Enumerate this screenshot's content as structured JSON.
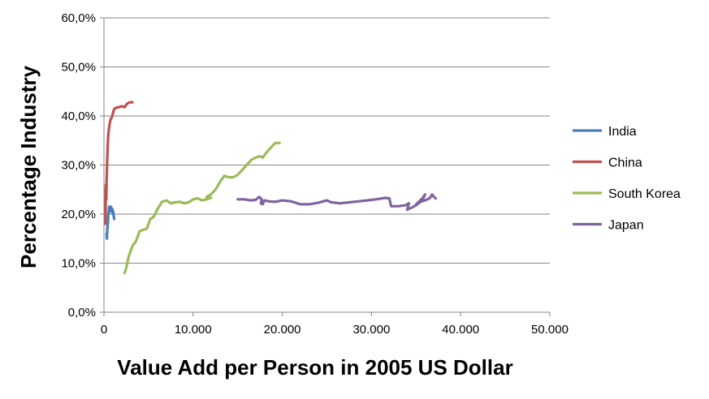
{
  "chart_data": {
    "type": "line",
    "xlabel": "Value Add per Person in 2005 US Dollar",
    "ylabel": "Percentage Industry",
    "xlim": [
      0,
      50000
    ],
    "ylim": [
      0,
      0.6
    ],
    "x_ticks": [
      0,
      10000,
      20000,
      30000,
      40000,
      50000
    ],
    "x_tick_labels": [
      "0",
      "10.000",
      "20.000",
      "30.000",
      "40.000",
      "50.000"
    ],
    "y_ticks": [
      0,
      0.1,
      0.2,
      0.3,
      0.4,
      0.5,
      0.6
    ],
    "y_tick_labels": [
      "0,0%",
      "10,0%",
      "20,0%",
      "30,0%",
      "40,0%",
      "50,0%",
      "60,0%"
    ],
    "grid": "horizontal",
    "legend_position": "right",
    "series": [
      {
        "name": "India",
        "color": "#4a7ebb",
        "points": [
          [
            300,
            0.16
          ],
          [
            330,
            0.15
          ],
          [
            360,
            0.165
          ],
          [
            380,
            0.175
          ],
          [
            400,
            0.17
          ],
          [
            430,
            0.18
          ],
          [
            460,
            0.19
          ],
          [
            500,
            0.2
          ],
          [
            540,
            0.205
          ],
          [
            580,
            0.215
          ],
          [
            620,
            0.21
          ],
          [
            660,
            0.205
          ],
          [
            700,
            0.212
          ],
          [
            750,
            0.208
          ],
          [
            800,
            0.215
          ],
          [
            850,
            0.21
          ],
          [
            900,
            0.205
          ],
          [
            950,
            0.21
          ],
          [
            1000,
            0.2
          ],
          [
            1050,
            0.205
          ],
          [
            1100,
            0.195
          ],
          [
            1150,
            0.19
          ]
        ]
      },
      {
        "name": "China",
        "color": "#c0504d",
        "points": [
          [
            150,
            0.18
          ],
          [
            180,
            0.2
          ],
          [
            200,
            0.25
          ],
          [
            230,
            0.26
          ],
          [
            260,
            0.23
          ],
          [
            290,
            0.265
          ],
          [
            320,
            0.28
          ],
          [
            360,
            0.31
          ],
          [
            400,
            0.33
          ],
          [
            450,
            0.35
          ],
          [
            500,
            0.365
          ],
          [
            600,
            0.38
          ],
          [
            700,
            0.39
          ],
          [
            800,
            0.395
          ],
          [
            900,
            0.398
          ],
          [
            1000,
            0.405
          ],
          [
            1100,
            0.412
          ],
          [
            1200,
            0.415
          ],
          [
            1400,
            0.417
          ],
          [
            1700,
            0.418
          ],
          [
            2000,
            0.42
          ],
          [
            2300,
            0.418
          ],
          [
            2600,
            0.425
          ],
          [
            2900,
            0.428
          ],
          [
            3200,
            0.428
          ]
        ]
      },
      {
        "name": "South Korea",
        "color": "#9bbb59",
        "points": [
          [
            2300,
            0.08
          ],
          [
            2500,
            0.09
          ],
          [
            2800,
            0.115
          ],
          [
            3200,
            0.135
          ],
          [
            3600,
            0.145
          ],
          [
            4000,
            0.165
          ],
          [
            4400,
            0.168
          ],
          [
            4800,
            0.17
          ],
          [
            5200,
            0.19
          ],
          [
            5600,
            0.195
          ],
          [
            6000,
            0.21
          ],
          [
            6500,
            0.225
          ],
          [
            7000,
            0.228
          ],
          [
            7500,
            0.222
          ],
          [
            8000,
            0.224
          ],
          [
            8500,
            0.225
          ],
          [
            9000,
            0.222
          ],
          [
            9500,
            0.224
          ],
          [
            10000,
            0.23
          ],
          [
            10500,
            0.232
          ],
          [
            11000,
            0.228
          ],
          [
            11500,
            0.23
          ],
          [
            12000,
            0.233
          ],
          [
            11800,
            0.232
          ],
          [
            11500,
            0.235
          ],
          [
            12000,
            0.24
          ],
          [
            12500,
            0.25
          ],
          [
            13000,
            0.265
          ],
          [
            13500,
            0.278
          ],
          [
            14000,
            0.275
          ],
          [
            14500,
            0.275
          ],
          [
            15000,
            0.28
          ],
          [
            15500,
            0.29
          ],
          [
            16000,
            0.3
          ],
          [
            16500,
            0.31
          ],
          [
            17000,
            0.315
          ],
          [
            17500,
            0.318
          ],
          [
            17800,
            0.315
          ],
          [
            18200,
            0.325
          ],
          [
            18700,
            0.335
          ],
          [
            19200,
            0.345
          ],
          [
            19700,
            0.345
          ]
        ]
      },
      {
        "name": "Japan",
        "color": "#8064a2",
        "points": [
          [
            15000,
            0.23
          ],
          [
            15800,
            0.23
          ],
          [
            16400,
            0.228
          ],
          [
            17000,
            0.229
          ],
          [
            17400,
            0.235
          ],
          [
            17700,
            0.23
          ],
          [
            17600,
            0.222
          ],
          [
            17800,
            0.22
          ],
          [
            18000,
            0.228
          ],
          [
            18500,
            0.226
          ],
          [
            19200,
            0.225
          ],
          [
            20000,
            0.228
          ],
          [
            21000,
            0.226
          ],
          [
            22000,
            0.22
          ],
          [
            23000,
            0.22
          ],
          [
            24000,
            0.223
          ],
          [
            25000,
            0.228
          ],
          [
            25500,
            0.224
          ],
          [
            26500,
            0.222
          ],
          [
            27500,
            0.224
          ],
          [
            28500,
            0.226
          ],
          [
            29500,
            0.228
          ],
          [
            30500,
            0.23
          ],
          [
            31500,
            0.233
          ],
          [
            32000,
            0.232
          ],
          [
            32200,
            0.216
          ],
          [
            33000,
            0.216
          ],
          [
            33800,
            0.218
          ],
          [
            34200,
            0.222
          ],
          [
            34000,
            0.209
          ],
          [
            34500,
            0.213
          ],
          [
            35000,
            0.218
          ],
          [
            35500,
            0.225
          ],
          [
            35800,
            0.232
          ],
          [
            36000,
            0.24
          ],
          [
            35700,
            0.232
          ],
          [
            35300,
            0.225
          ],
          [
            35000,
            0.22
          ],
          [
            35500,
            0.225
          ],
          [
            36000,
            0.228
          ],
          [
            36500,
            0.232
          ],
          [
            36800,
            0.24
          ],
          [
            37000,
            0.235
          ],
          [
            37200,
            0.232
          ]
        ]
      }
    ]
  }
}
